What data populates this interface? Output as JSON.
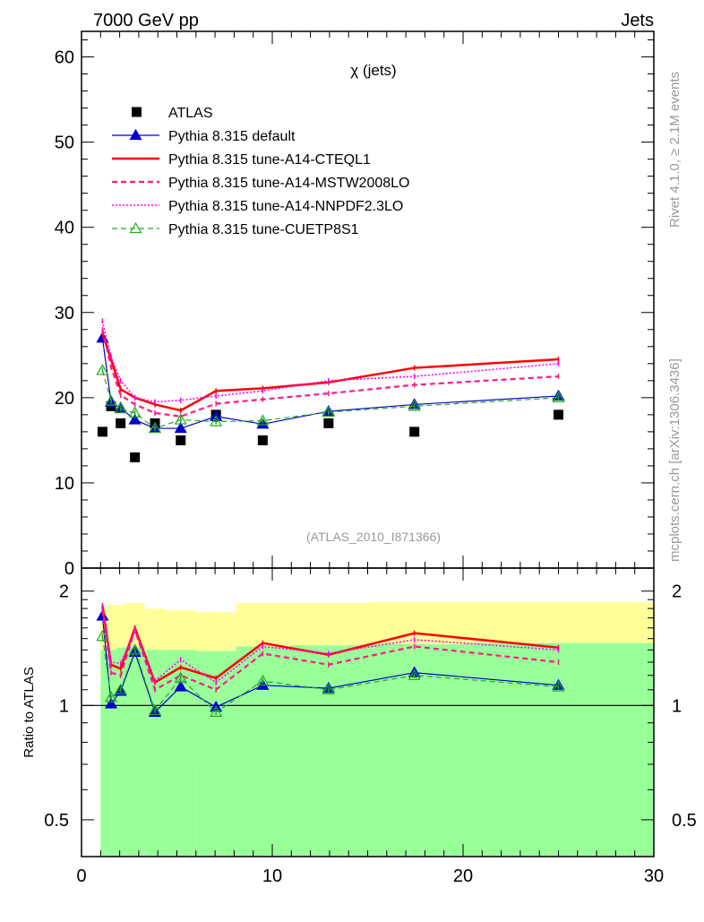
{
  "header": {
    "left_label": "7000 GeV pp",
    "right_label": "Jets"
  },
  "side_labels": {
    "rivet": "Rivet 4.1.0, ≥ 2.1M events",
    "source": "mcplots.cern.ch [arXiv:1306.3436]"
  },
  "main_plot": {
    "title": "χ (jets)",
    "analysis_id": "(ATLAS_2010_I871366)"
  },
  "ratio_plot": {
    "ylabel": "Ratio to ATLAS"
  },
  "chart_data": [
    {
      "type": "line",
      "name": "distribution",
      "xlim": [
        0,
        30
      ],
      "ylim": [
        0,
        63
      ],
      "yticks": [
        0,
        10,
        20,
        30,
        40,
        50,
        60
      ],
      "ytick_labels": [
        "0",
        "10",
        "20",
        "30",
        "40",
        "50",
        "60"
      ],
      "xticks": [
        0,
        10,
        20,
        30
      ],
      "xtick_labels": [
        "0",
        "10",
        "20",
        "30"
      ],
      "x": [
        1.1,
        1.55,
        2.05,
        2.8,
        3.85,
        5.2,
        7.05,
        9.5,
        12.95,
        17.45,
        25.0
      ],
      "series": [
        {
          "name": "ATLAS",
          "color": "#000000",
          "style": "data",
          "values": [
            16,
            19,
            17,
            13,
            17,
            15,
            18,
            15,
            17,
            16,
            18
          ]
        },
        {
          "name": "Pythia 8.315 default",
          "color": "#0000cc",
          "style": "solid-triangle",
          "values": [
            27.0,
            19.5,
            18.8,
            17.4,
            16.4,
            16.4,
            17.8,
            16.9,
            18.4,
            19.2,
            20.2
          ]
        },
        {
          "name": "Pythia 8.315 tune-A14-CTEQL1",
          "color": "#ff0000",
          "style": "solid-thick",
          "values": [
            27.5,
            24.5,
            21.0,
            20.0,
            19.2,
            18.5,
            20.8,
            21.1,
            21.8,
            23.5,
            24.5
          ]
        },
        {
          "name": "Pythia 8.315 tune-A14-MSTW2008LO",
          "color": "#ff1a8c",
          "style": "dashed-thick",
          "values": [
            28.0,
            23.6,
            20.3,
            19.2,
            18.2,
            17.8,
            19.3,
            19.8,
            20.5,
            21.5,
            22.5
          ]
        },
        {
          "name": "Pythia 8.315 tune-A14-NNPDF2.3LO",
          "color": "#ff00ff",
          "style": "dotted",
          "values": [
            29.0,
            24.8,
            22.0,
            20.0,
            19.5,
            19.7,
            20.2,
            20.8,
            22.0,
            22.5,
            24.0
          ]
        },
        {
          "name": "Pythia 8.315 tune-CUETP8S1",
          "color": "#22aa22",
          "style": "dashed-open-triangle",
          "values": [
            23.2,
            19.6,
            18.7,
            18.2,
            16.4,
            17.4,
            17.2,
            17.3,
            18.3,
            19.0,
            20.0
          ]
        }
      ]
    },
    {
      "type": "line",
      "name": "ratio",
      "xlim": [
        0,
        30
      ],
      "ylim": [
        0.4,
        2.3
      ],
      "yscale": "log",
      "yticks": [
        0.5,
        1,
        2
      ],
      "ytick_labels": [
        "0.5",
        "1",
        "2"
      ],
      "xticks": [
        0,
        10,
        20,
        30
      ],
      "xtick_labels": [
        "0",
        "10",
        "20",
        "30"
      ],
      "reference": 1,
      "bands": {
        "x_edges": [
          1.0,
          1.3,
          1.8,
          2.3,
          3.3,
          4.4,
          6.0,
          8.1,
          10.9,
          15.0,
          20.0,
          30.0
        ],
        "yellow": {
          "color": "#ffff99",
          "upper": [
            1.82,
            1.84,
            1.84,
            1.86,
            1.8,
            1.78,
            1.76,
            1.86,
            1.86,
            1.87,
            1.87
          ],
          "lower": [
            0.38,
            0.65,
            0.65,
            0.64,
            0.68,
            0.69,
            0.7,
            0.66,
            0.66,
            0.64,
            0.63
          ]
        },
        "green": {
          "color": "#99ff99",
          "upper": [
            1.4,
            1.4,
            1.42,
            1.42,
            1.4,
            1.4,
            1.39,
            1.43,
            1.44,
            1.45,
            1.46
          ],
          "lower": [
            0.38,
            0.38,
            0.38,
            0.38,
            0.38,
            0.38,
            0.38,
            0.38,
            0.38,
            0.38,
            0.38
          ]
        }
      },
      "x": [
        1.1,
        1.55,
        2.05,
        2.8,
        3.85,
        5.2,
        7.05,
        9.5,
        12.95,
        17.45,
        25.0
      ],
      "series": [
        {
          "name": "Pythia 8.315 default",
          "color": "#0000cc",
          "values": [
            1.72,
            1.01,
            1.09,
            1.38,
            0.96,
            1.12,
            0.99,
            1.13,
            1.11,
            1.22,
            1.13
          ]
        },
        {
          "name": "Pythia 8.315 tune-A14-CTEQL1",
          "color": "#ff0000",
          "values": [
            1.83,
            1.28,
            1.25,
            1.6,
            1.15,
            1.26,
            1.18,
            1.46,
            1.36,
            1.55,
            1.42
          ]
        },
        {
          "name": "Pythia 8.315 tune-A14-MSTW2008LO",
          "color": "#ff1a8c",
          "values": [
            1.78,
            1.22,
            1.2,
            1.58,
            1.1,
            1.2,
            1.1,
            1.37,
            1.28,
            1.43,
            1.3
          ]
        },
        {
          "name": "Pythia 8.315 tune-A14-NNPDF2.3LO",
          "color": "#ff00ff",
          "values": [
            1.81,
            1.3,
            1.29,
            1.57,
            1.16,
            1.32,
            1.15,
            1.43,
            1.37,
            1.49,
            1.4
          ]
        },
        {
          "name": "Pythia 8.315 tune-CUETP8S1",
          "color": "#22aa22",
          "values": [
            1.52,
            1.05,
            1.1,
            1.4,
            0.97,
            1.18,
            0.96,
            1.16,
            1.1,
            1.2,
            1.12
          ]
        }
      ]
    }
  ]
}
